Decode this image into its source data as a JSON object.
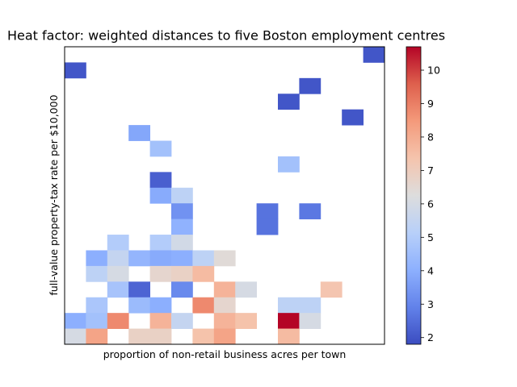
{
  "chart_data": {
    "type": "heatmap",
    "title": "Heat factor: weighted distances to five Boston employment centres",
    "xlabel": "proportion of non-retail business acres per town",
    "ylabel": "full-value property-tax rate per $10,000",
    "x_ticks_shown": false,
    "y_ticks_shown": false,
    "grid": false,
    "n_cols": 15,
    "n_rows": 14,
    "colorbar": {
      "min": 1.8,
      "max": 10.7,
      "ticks": [
        2,
        3,
        4,
        5,
        6,
        7,
        8,
        9,
        10
      ],
      "tick_labels": [
        "2",
        "3",
        "4",
        "5",
        "6",
        "7",
        "8",
        "9",
        "10"
      ],
      "colormap": "coolwarm"
    },
    "cells": [
      {
        "col": 14,
        "row": 13,
        "value": 2.0
      },
      {
        "col": 0,
        "row": 12,
        "value": 2.0
      },
      {
        "col": 11,
        "row": 11,
        "value": 2.0
      },
      {
        "col": 10,
        "row": 10,
        "value": 2.0
      },
      {
        "col": 13,
        "row": 9,
        "value": 2.0
      },
      {
        "col": 3,
        "row": 8,
        "value": 3.8
      },
      {
        "col": 4,
        "row": 7,
        "value": 4.6
      },
      {
        "col": 10,
        "row": 6,
        "value": 4.6
      },
      {
        "col": 4,
        "row": 5,
        "value": 2.2
      },
      {
        "col": 4,
        "row": 4,
        "value": 3.9
      },
      {
        "col": 5,
        "row": 4,
        "value": 5.3
      },
      {
        "col": 5,
        "row": 3,
        "value": 3.3
      },
      {
        "col": 9,
        "row": 3,
        "value": 2.6
      },
      {
        "col": 11,
        "row": 3,
        "value": 2.7
      },
      {
        "col": 5,
        "row": 2,
        "value": 4.1
      },
      {
        "col": 9,
        "row": 2,
        "value": 2.6
      },
      {
        "col": 2,
        "row": 1,
        "value": 5.0
      },
      {
        "col": 4,
        "row": 1,
        "value": 5.0
      },
      {
        "col": 5,
        "row": 1,
        "value": 5.9
      },
      {
        "col": 1,
        "row": 0,
        "value": 4.0
      },
      {
        "col": 2,
        "row": 0,
        "value": 5.5
      },
      {
        "col": 3,
        "row": 0,
        "value": 4.2
      },
      {
        "col": 4,
        "row": 0,
        "value": 3.9
      },
      {
        "col": 5,
        "row": 0,
        "value": 4.0
      },
      {
        "col": 6,
        "row": 0,
        "value": 5.3
      },
      {
        "col": 7,
        "row": 0,
        "value": 6.4
      }
    ],
    "cells_lower": [
      {
        "col": 1,
        "row": -1,
        "value": 5.3
      },
      {
        "col": 2,
        "row": -1,
        "value": 6.0
      },
      {
        "col": 4,
        "row": -1,
        "value": 6.6
      },
      {
        "col": 5,
        "row": -1,
        "value": 6.8
      },
      {
        "col": 6,
        "row": -1,
        "value": 7.6
      },
      {
        "col": 2,
        "row": -2,
        "value": 4.7
      },
      {
        "col": 3,
        "row": -2,
        "value": 2.3
      },
      {
        "col": 5,
        "row": -2,
        "value": 3.1
      },
      {
        "col": 7,
        "row": -2,
        "value": 7.8
      },
      {
        "col": 8,
        "row": -2,
        "value": 6.0
      },
      {
        "col": 12,
        "row": -2,
        "value": 7.3
      },
      {
        "col": 1,
        "row": -3,
        "value": 4.8
      },
      {
        "col": 3,
        "row": -3,
        "value": 4.4
      },
      {
        "col": 4,
        "row": -3,
        "value": 4.0
      },
      {
        "col": 6,
        "row": -3,
        "value": 8.8
      },
      {
        "col": 7,
        "row": -3,
        "value": 6.6
      },
      {
        "col": 10,
        "row": -3,
        "value": 5.3
      },
      {
        "col": 11,
        "row": -3,
        "value": 5.3
      },
      {
        "col": 0,
        "row": -4,
        "value": 4.0
      },
      {
        "col": 1,
        "row": -4,
        "value": 4.6
      },
      {
        "col": 2,
        "row": -4,
        "value": 8.8
      },
      {
        "col": 4,
        "row": -4,
        "value": 7.8
      },
      {
        "col": 5,
        "row": -4,
        "value": 5.5
      },
      {
        "col": 7,
        "row": -4,
        "value": 7.8
      },
      {
        "col": 8,
        "row": -4,
        "value": 7.4
      },
      {
        "col": 10,
        "row": -4,
        "value": 10.7
      },
      {
        "col": 11,
        "row": -4,
        "value": 6.0
      },
      {
        "col": 0,
        "row": -5,
        "value": 6.0
      },
      {
        "col": 1,
        "row": -5,
        "value": 8.2
      },
      {
        "col": 3,
        "row": -5,
        "value": 6.8
      },
      {
        "col": 4,
        "row": -5,
        "value": 6.8
      },
      {
        "col": 6,
        "row": -5,
        "value": 7.4
      },
      {
        "col": 7,
        "row": -5,
        "value": 8.2
      },
      {
        "col": 10,
        "row": -5,
        "value": 7.6
      }
    ]
  }
}
